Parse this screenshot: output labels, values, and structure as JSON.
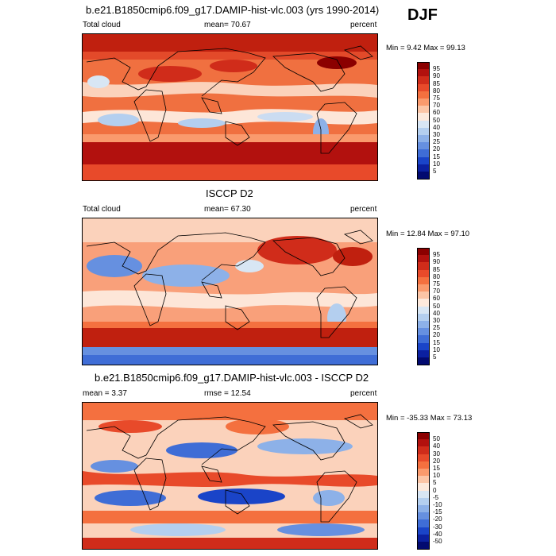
{
  "header": {
    "season": "DJF"
  },
  "chart_data": [
    {
      "type": "heatmap",
      "title": "b.e21.B1850cmip6.f09_g17.DAMIP-hist-vlc.003 (yrs 1990-2014)",
      "left_label": "Total cloud",
      "stat_label": "mean=  70.67",
      "units": "percent",
      "minmax": "Min =   9.42 Max =  99.13",
      "colorbar_levels": [
        "95",
        "90",
        "85",
        "80",
        "75",
        "70",
        "60",
        "50",
        "40",
        "30",
        "25",
        "20",
        "15",
        "10",
        "5"
      ],
      "colors": [
        "#8b0000",
        "#b2110e",
        "#d02c1a",
        "#e84a2a",
        "#f4703f",
        "#fa9a6d",
        "#fcc5a6",
        "#fde9dc",
        "#d8e6f4",
        "#b4cfef",
        "#8db1e8",
        "#6690e0",
        "#3f6dd6",
        "#1a44c8",
        "#0b20a0",
        "#020a70"
      ]
    },
    {
      "type": "heatmap",
      "title": "ISCCP D2",
      "left_label": "Total cloud",
      "stat_label": "mean=  67.30",
      "units": "percent",
      "minmax": "Min =  12.84 Max =  97.10",
      "colorbar_levels": [
        "95",
        "90",
        "85",
        "80",
        "75",
        "70",
        "60",
        "50",
        "40",
        "30",
        "25",
        "20",
        "15",
        "10",
        "5"
      ],
      "colors": [
        "#8b0000",
        "#b2110e",
        "#d02c1a",
        "#e84a2a",
        "#f4703f",
        "#fa9a6d",
        "#fcc5a6",
        "#fde9dc",
        "#d8e6f4",
        "#b4cfef",
        "#8db1e8",
        "#6690e0",
        "#3f6dd6",
        "#1a44c8",
        "#0b20a0",
        "#020a70"
      ]
    },
    {
      "type": "heatmap",
      "title": "b.e21.B1850cmip6.f09_g17.DAMIP-hist-vlc.003 - ISCCP D2",
      "left_label": "mean =   3.37",
      "stat_label": "rmse =  12.54",
      "units": "percent",
      "minmax": "Min = -35.33 Max =  73.13",
      "colorbar_levels": [
        "50",
        "40",
        "30",
        "20",
        "15",
        "10",
        "5",
        "0",
        "-5",
        "-10",
        "-15",
        "-20",
        "-30",
        "-40",
        "-50"
      ],
      "colors": [
        "#8b0000",
        "#b2110e",
        "#d02c1a",
        "#e84a2a",
        "#f4703f",
        "#fa9a6d",
        "#fcc5a6",
        "#fde9dc",
        "#d8e6f4",
        "#b4cfef",
        "#8db1e8",
        "#6690e0",
        "#3f6dd6",
        "#1a44c8",
        "#0b20a0",
        "#020a70"
      ]
    }
  ]
}
